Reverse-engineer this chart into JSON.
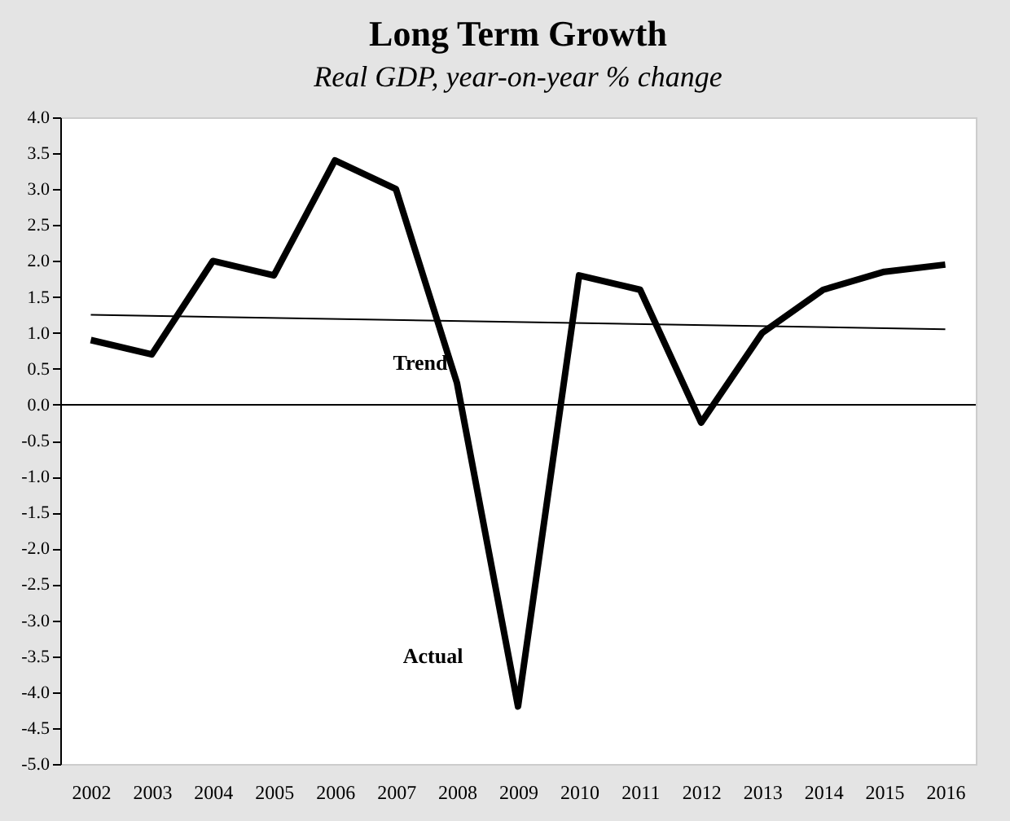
{
  "chart_data": {
    "type": "line",
    "title": "Long Term Growth",
    "subtitle": "Real GDP, year-on-year % change",
    "categories": [
      "2002",
      "2003",
      "2004",
      "2005",
      "2006",
      "2007",
      "2008",
      "2009",
      "2010",
      "2011",
      "2012",
      "2013",
      "2014",
      "2015",
      "2016"
    ],
    "series": [
      {
        "color": "#000000",
        "values": [
          0.9,
          0.7,
          2.0,
          1.8,
          3.4,
          3.0,
          0.3,
          -4.2,
          1.8,
          1.6,
          -0.25,
          1.0,
          1.6,
          1.85,
          1.95
        ]
      },
      {
        "color": "#000000",
        "values": [
          1.25,
          null,
          null,
          null,
          null,
          null,
          null,
          null,
          null,
          null,
          null,
          null,
          null,
          null,
          1.05
        ]
      }
    ],
    "annotations": [
      "Trend",
      "Actual"
    ],
    "ref_lines": [
      {
        "axis": "y",
        "value": 0,
        "color": "#000000"
      }
    ],
    "ylim": [
      -5.0,
      4.0
    ],
    "yticks": [
      {
        "value": -5,
        "label": "-5.0"
      },
      {
        "value": -4.5,
        "label": "-4.5"
      },
      {
        "value": -4,
        "label": "-4.0"
      },
      {
        "value": -3.5,
        "label": "-3.5"
      },
      {
        "value": -3,
        "label": "-3.0"
      },
      {
        "value": -2.5,
        "label": "-2.5"
      },
      {
        "value": -2,
        "label": "-2.0"
      },
      {
        "value": -1.5,
        "label": "-1.5"
      },
      {
        "value": -1,
        "label": "-1.0"
      },
      {
        "value": -0.5,
        "label": "-0.5"
      },
      {
        "value": 0,
        "label": "0.0"
      },
      {
        "value": 0.5,
        "label": "0.5"
      },
      {
        "value": 1,
        "label": "1.0"
      },
      {
        "value": 1.5,
        "label": "1.5"
      },
      {
        "value": 2,
        "label": "2.0"
      },
      {
        "value": 2.5,
        "label": "2.5"
      },
      {
        "value": 3,
        "label": "3.0"
      },
      {
        "value": 3.5,
        "label": "3.5"
      },
      {
        "value": 4,
        "label": "4.0"
      }
    ],
    "grid": false,
    "marker": "none",
    "line_style": "solid"
  }
}
